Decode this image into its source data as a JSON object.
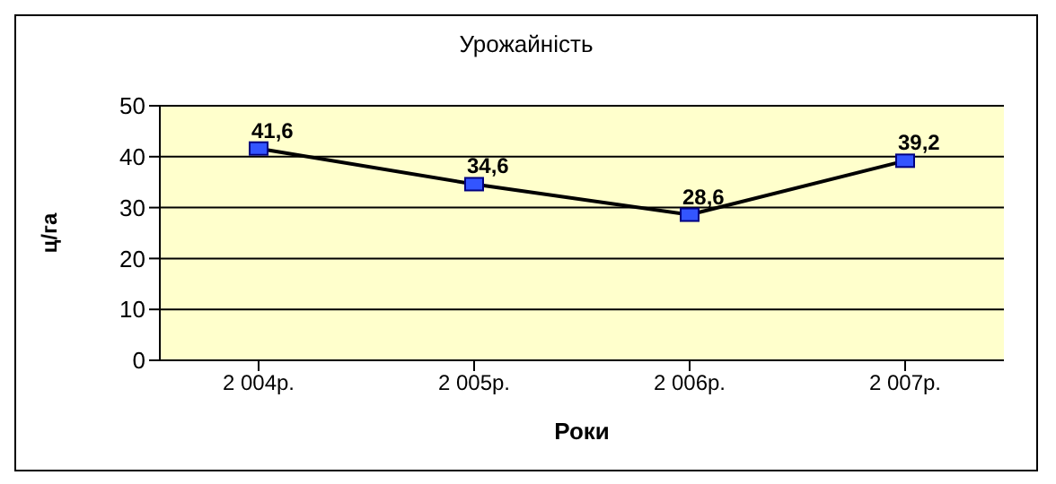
{
  "chart_data": {
    "type": "line",
    "title": "Урожайність",
    "xlabel": "Роки",
    "ylabel": "ц/га",
    "categories": [
      "2 004р.",
      "2 005р.",
      "2 006р.",
      "2 007р."
    ],
    "series": [
      {
        "color": "#000000",
        "values": [
          41.6,
          34.6,
          28.6,
          39.2
        ],
        "value_labels": [
          "41,6",
          "34,6",
          "28,6",
          "39,2"
        ]
      }
    ],
    "ylim": [
      0,
      50
    ],
    "yticks": [
      0,
      10,
      20,
      30,
      40,
      50
    ],
    "grid": "y",
    "marker": "square",
    "line_style": "solid"
  }
}
